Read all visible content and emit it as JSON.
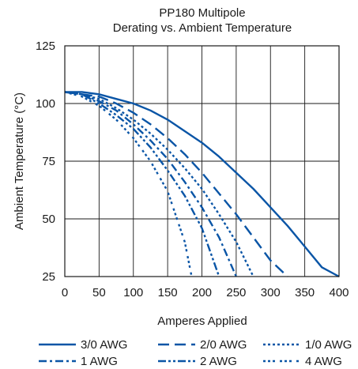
{
  "chart_data": {
    "type": "line",
    "title": "PP180 Multipole",
    "subtitle": "Derating vs. Ambient Temperature",
    "xlabel": "Amperes Applied",
    "ylabel": "Ambient Temperature (°C)",
    "xlim": [
      0,
      400
    ],
    "ylim": [
      25,
      125
    ],
    "xticks": [
      "0",
      "50",
      "100",
      "150",
      "200",
      "250",
      "300",
      "350",
      "400"
    ],
    "yticks": [
      "25",
      "50",
      "75",
      "100",
      "125"
    ],
    "grid": true,
    "legend_position": "bottom",
    "line_color": "#0a55a6",
    "series": [
      {
        "name": "3/0 AWG",
        "dash": "solid",
        "x": [
          0,
          25,
          50,
          75,
          100,
          125,
          150,
          175,
          200,
          225,
          250,
          275,
          300,
          325,
          350,
          375,
          400
        ],
        "y": [
          105,
          105,
          104,
          102,
          100,
          97,
          93,
          88,
          83,
          77,
          70,
          63,
          55,
          47,
          38,
          29,
          25
        ]
      },
      {
        "name": "2/0 AWG",
        "dash": "long-dash",
        "x": [
          0,
          25,
          50,
          75,
          100,
          125,
          150,
          175,
          200,
          225,
          250,
          275,
          300,
          325
        ],
        "y": [
          105,
          104,
          103,
          100,
          96,
          91,
          85,
          78,
          70,
          61,
          52,
          42,
          32,
          25
        ]
      },
      {
        "name": "1/0 AWG",
        "dash": "dot",
        "x": [
          0,
          25,
          50,
          75,
          100,
          125,
          150,
          175,
          200,
          225,
          250,
          275
        ],
        "y": [
          105,
          104,
          102,
          98,
          93,
          87,
          80,
          72,
          63,
          52,
          40,
          25
        ]
      },
      {
        "name": "1 AWG",
        "dash": "dash-dot",
        "x": [
          0,
          25,
          50,
          75,
          100,
          125,
          150,
          175,
          200,
          225,
          250
        ],
        "y": [
          105,
          104,
          101,
          97,
          91,
          84,
          76,
          66,
          55,
          42,
          25
        ]
      },
      {
        "name": "2 AWG",
        "dash": "dash-dot-dot",
        "x": [
          0,
          25,
          50,
          75,
          100,
          125,
          150,
          175,
          200,
          225
        ],
        "y": [
          105,
          104,
          100,
          95,
          89,
          81,
          71,
          60,
          46,
          25
        ]
      },
      {
        "name": "4 AWG",
        "dash": "dash-dot-dot-dot",
        "x": [
          0,
          25,
          50,
          75,
          100,
          125,
          150,
          175,
          185
        ],
        "y": [
          105,
          103,
          99,
          93,
          85,
          75,
          62,
          40,
          25
        ]
      }
    ]
  }
}
